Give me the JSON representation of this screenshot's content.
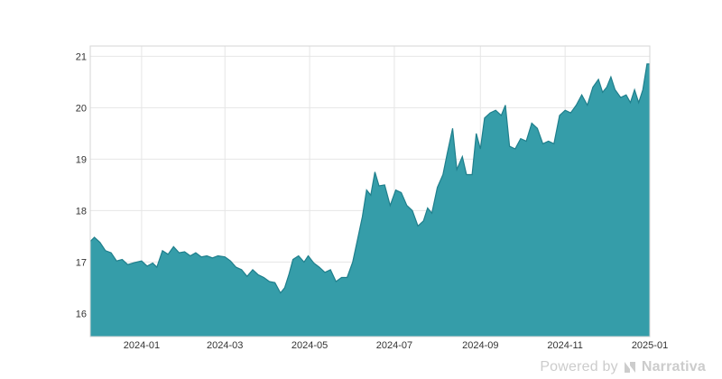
{
  "chart_data": {
    "type": "area",
    "title": "",
    "xlabel": "",
    "ylabel": "",
    "x_range": [
      "2023-11-25",
      "2025-01-01"
    ],
    "ylim": [
      15.55,
      21.2
    ],
    "grid": true,
    "color": "#2e9aa6",
    "y_ticks": [
      "16",
      "17",
      "18",
      "19",
      "20",
      "21"
    ],
    "x_ticks": [
      "2024-01",
      "2024-03",
      "2024-05",
      "2024-07",
      "2024-09",
      "2024-11",
      "2025-01"
    ],
    "series": [
      {
        "points": [
          [
            "2023-11-25",
            17.4
          ],
          [
            "2023-11-28",
            17.48
          ],
          [
            "2023-12-02",
            17.38
          ],
          [
            "2023-12-06",
            17.22
          ],
          [
            "2023-12-10",
            17.18
          ],
          [
            "2023-12-14",
            17.02
          ],
          [
            "2023-12-18",
            17.05
          ],
          [
            "2023-12-22",
            16.95
          ],
          [
            "2023-12-27",
            16.99
          ],
          [
            "2024-01-01",
            17.02
          ],
          [
            "2024-01-05",
            16.92
          ],
          [
            "2024-01-09",
            16.98
          ],
          [
            "2024-01-12",
            16.9
          ],
          [
            "2024-01-16",
            17.22
          ],
          [
            "2024-01-20",
            17.15
          ],
          [
            "2024-01-24",
            17.3
          ],
          [
            "2024-01-28",
            17.18
          ],
          [
            "2024-02-01",
            17.2
          ],
          [
            "2024-02-05",
            17.12
          ],
          [
            "2024-02-09",
            17.18
          ],
          [
            "2024-02-13",
            17.1
          ],
          [
            "2024-02-17",
            17.12
          ],
          [
            "2024-02-21",
            17.08
          ],
          [
            "2024-02-25",
            17.12
          ],
          [
            "2024-03-01",
            17.1
          ],
          [
            "2024-03-05",
            17.02
          ],
          [
            "2024-03-09",
            16.9
          ],
          [
            "2024-03-13",
            16.85
          ],
          [
            "2024-03-17",
            16.72
          ],
          [
            "2024-03-21",
            16.85
          ],
          [
            "2024-03-25",
            16.75
          ],
          [
            "2024-03-29",
            16.7
          ],
          [
            "2024-04-02",
            16.62
          ],
          [
            "2024-04-06",
            16.6
          ],
          [
            "2024-04-10",
            16.4
          ],
          [
            "2024-04-13",
            16.5
          ],
          [
            "2024-04-16",
            16.75
          ],
          [
            "2024-04-19",
            17.05
          ],
          [
            "2024-04-23",
            17.12
          ],
          [
            "2024-04-27",
            17.0
          ],
          [
            "2024-04-30",
            17.12
          ],
          [
            "2024-05-04",
            16.98
          ],
          [
            "2024-05-08",
            16.9
          ],
          [
            "2024-05-12",
            16.8
          ],
          [
            "2024-05-16",
            16.85
          ],
          [
            "2024-05-20",
            16.62
          ],
          [
            "2024-05-24",
            16.7
          ],
          [
            "2024-05-28",
            16.7
          ],
          [
            "2024-06-01",
            17.0
          ],
          [
            "2024-06-05",
            17.5
          ],
          [
            "2024-06-08",
            17.88
          ],
          [
            "2024-06-11",
            18.4
          ],
          [
            "2024-06-14",
            18.3
          ],
          [
            "2024-06-17",
            18.75
          ],
          [
            "2024-06-20",
            18.48
          ],
          [
            "2024-06-24",
            18.5
          ],
          [
            "2024-06-28",
            18.1
          ],
          [
            "2024-07-02",
            18.4
          ],
          [
            "2024-07-06",
            18.35
          ],
          [
            "2024-07-10",
            18.1
          ],
          [
            "2024-07-14",
            18.0
          ],
          [
            "2024-07-18",
            17.7
          ],
          [
            "2024-07-22",
            17.8
          ],
          [
            "2024-07-25",
            18.05
          ],
          [
            "2024-07-28",
            17.95
          ],
          [
            "2024-08-01",
            18.45
          ],
          [
            "2024-08-05",
            18.7
          ],
          [
            "2024-08-08",
            19.1
          ],
          [
            "2024-08-12",
            19.6
          ],
          [
            "2024-08-15",
            18.8
          ],
          [
            "2024-08-19",
            19.05
          ],
          [
            "2024-08-22",
            18.7
          ],
          [
            "2024-08-26",
            18.7
          ],
          [
            "2024-08-29",
            19.5
          ],
          [
            "2024-09-01",
            19.2
          ],
          [
            "2024-09-04",
            19.8
          ],
          [
            "2024-09-08",
            19.9
          ],
          [
            "2024-09-12",
            19.95
          ],
          [
            "2024-09-16",
            19.85
          ],
          [
            "2024-09-19",
            20.05
          ],
          [
            "2024-09-22",
            19.25
          ],
          [
            "2024-09-26",
            19.2
          ],
          [
            "2024-09-30",
            19.4
          ],
          [
            "2024-10-04",
            19.35
          ],
          [
            "2024-10-08",
            19.7
          ],
          [
            "2024-10-12",
            19.6
          ],
          [
            "2024-10-16",
            19.3
          ],
          [
            "2024-10-20",
            19.35
          ],
          [
            "2024-10-24",
            19.3
          ],
          [
            "2024-10-28",
            19.85
          ],
          [
            "2024-11-01",
            19.95
          ],
          [
            "2024-11-05",
            19.9
          ],
          [
            "2024-11-09",
            20.05
          ],
          [
            "2024-11-13",
            20.25
          ],
          [
            "2024-11-17",
            20.05
          ],
          [
            "2024-11-21",
            20.4
          ],
          [
            "2024-11-25",
            20.55
          ],
          [
            "2024-11-28",
            20.3
          ],
          [
            "2024-12-01",
            20.4
          ],
          [
            "2024-12-04",
            20.6
          ],
          [
            "2024-12-07",
            20.35
          ],
          [
            "2024-12-11",
            20.2
          ],
          [
            "2024-12-15",
            20.25
          ],
          [
            "2024-12-18",
            20.1
          ],
          [
            "2024-12-21",
            20.35
          ],
          [
            "2024-12-24",
            20.1
          ],
          [
            "2024-12-27",
            20.35
          ],
          [
            "2024-12-30",
            20.85
          ],
          [
            "2025-01-01",
            20.85
          ]
        ]
      }
    ]
  },
  "watermark": {
    "powered_by": "Powered by",
    "brand": "Narrativa"
  }
}
